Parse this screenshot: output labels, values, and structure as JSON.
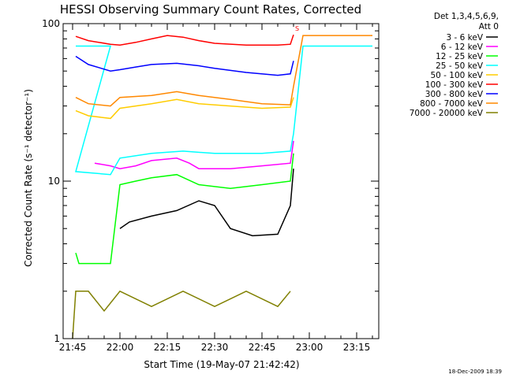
{
  "chart_data": {
    "type": "line",
    "title": "HESSI Observing Summary Count Rates, Corrected",
    "xlabel": "Start Time (19-May-07 21:42:42)",
    "ylabel": "Corrected Count Rate (s⁻¹ detector⁻¹)",
    "y_scale": "log",
    "ylim": [
      1,
      100
    ],
    "xlim": [
      "21:42",
      "23:22"
    ],
    "x_tick_labels": [
      "21:45",
      "22:00",
      "22:15",
      "22:30",
      "22:45",
      "23:00",
      "23:15"
    ],
    "y_tick_labels": [
      "1",
      "10",
      "100"
    ],
    "legend_title": "Det 1,3,4,5,6,9,",
    "legend_subtitle": "Att 0",
    "legend_position": "right",
    "footer_date": "18-Dec-2009 18:39",
    "marker_label": "S",
    "series": [
      {
        "name": "3 - 6 keV",
        "color": "#000000",
        "points": [
          [
            "22:00",
            5.0
          ],
          [
            "22:03",
            5.5
          ],
          [
            "22:10",
            6.0
          ],
          [
            "22:18",
            6.5
          ],
          [
            "22:25",
            7.5
          ],
          [
            "22:30",
            7.0
          ],
          [
            "22:35",
            5.0
          ],
          [
            "22:42",
            4.5
          ],
          [
            "22:50",
            4.6
          ],
          [
            "22:54",
            7.0
          ],
          [
            "22:55",
            12.0
          ]
        ]
      },
      {
        "name": "6 - 12 keV",
        "color": "#ff00ff",
        "points": [
          [
            "21:52",
            13.0
          ],
          [
            "21:57",
            12.5
          ],
          [
            "22:00",
            12.0
          ],
          [
            "22:05",
            12.5
          ],
          [
            "22:10",
            13.5
          ],
          [
            "22:18",
            14.0
          ],
          [
            "22:22",
            13.0
          ],
          [
            "22:25",
            12.0
          ],
          [
            "22:35",
            12.0
          ],
          [
            "22:45",
            12.5
          ],
          [
            "22:54",
            13.0
          ],
          [
            "22:55",
            18.0
          ]
        ]
      },
      {
        "name": "12 - 25 keV",
        "color": "#00ff00",
        "points": [
          [
            "21:46",
            3.5
          ],
          [
            "21:47",
            3.0
          ],
          [
            "21:50",
            3.0
          ],
          [
            "21:57",
            3.0
          ],
          [
            "22:00",
            9.5
          ],
          [
            "22:05",
            10.0
          ],
          [
            "22:10",
            10.5
          ],
          [
            "22:18",
            11.0
          ],
          [
            "22:25",
            9.5
          ],
          [
            "22:35",
            9.0
          ],
          [
            "22:45",
            9.5
          ],
          [
            "22:54",
            10.0
          ],
          [
            "22:55",
            15.0
          ]
        ]
      },
      {
        "name": "25 - 50 keV",
        "color": "#00ffff",
        "points": [
          [
            "21:46",
            72.0
          ],
          [
            "21:57",
            72.0
          ],
          [
            "21:46",
            11.5
          ],
          [
            "21:57",
            11.0
          ],
          [
            "22:00",
            14.0
          ],
          [
            "22:10",
            15.0
          ],
          [
            "22:20",
            15.5
          ],
          [
            "22:30",
            15.0
          ],
          [
            "22:45",
            15.0
          ],
          [
            "22:54",
            15.5
          ],
          [
            "22:55",
            20.0
          ],
          [
            "22:58",
            72.0
          ],
          [
            "23:20",
            72.0
          ]
        ]
      },
      {
        "name": "50 - 100 keV",
        "color": "#ffcc00",
        "points": [
          [
            "21:46",
            28.0
          ],
          [
            "21:50",
            26.0
          ],
          [
            "21:57",
            25.0
          ],
          [
            "22:00",
            29.0
          ],
          [
            "22:10",
            31.0
          ],
          [
            "22:18",
            33.0
          ],
          [
            "22:25",
            31.0
          ],
          [
            "22:35",
            30.0
          ],
          [
            "22:45",
            29.0
          ],
          [
            "22:54",
            29.5
          ],
          [
            "22:55",
            34.0
          ]
        ]
      },
      {
        "name": "100 - 300 keV",
        "color": "#ff0000",
        "points": [
          [
            "21:46",
            83.0
          ],
          [
            "21:50",
            78.0
          ],
          [
            "21:57",
            74.0
          ],
          [
            "22:00",
            73.0
          ],
          [
            "22:05",
            76.0
          ],
          [
            "22:10",
            80.0
          ],
          [
            "22:15",
            84.0
          ],
          [
            "22:20",
            82.0
          ],
          [
            "22:25",
            78.0
          ],
          [
            "22:30",
            75.0
          ],
          [
            "22:40",
            73.0
          ],
          [
            "22:50",
            73.0
          ],
          [
            "22:54",
            74.0
          ],
          [
            "22:55",
            85.0
          ]
        ]
      },
      {
        "name": "300 - 800 keV",
        "color": "#0000ff",
        "points": [
          [
            "21:46",
            62.0
          ],
          [
            "21:50",
            55.0
          ],
          [
            "21:57",
            50.0
          ],
          [
            "22:00",
            51.0
          ],
          [
            "22:05",
            53.0
          ],
          [
            "22:10",
            55.0
          ],
          [
            "22:18",
            56.0
          ],
          [
            "22:25",
            54.0
          ],
          [
            "22:30",
            52.0
          ],
          [
            "22:40",
            49.0
          ],
          [
            "22:50",
            47.0
          ],
          [
            "22:54",
            48.0
          ],
          [
            "22:55",
            58.0
          ]
        ]
      },
      {
        "name": "800 - 7000 keV",
        "color": "#ff8800",
        "points": [
          [
            "21:46",
            34.0
          ],
          [
            "21:50",
            31.0
          ],
          [
            "21:57",
            30.0
          ],
          [
            "22:00",
            34.0
          ],
          [
            "22:10",
            35.0
          ],
          [
            "22:18",
            37.0
          ],
          [
            "22:25",
            35.0
          ],
          [
            "22:35",
            33.0
          ],
          [
            "22:45",
            31.0
          ],
          [
            "22:54",
            30.5
          ],
          [
            "22:55",
            40.0
          ],
          [
            "22:58",
            84.0
          ],
          [
            "23:20",
            84.0
          ]
        ]
      },
      {
        "name": "7000 - 20000 keV",
        "color": "#808000",
        "points": [
          [
            "21:45",
            1.0
          ],
          [
            "21:46",
            2.0
          ],
          [
            "21:50",
            2.0
          ],
          [
            "21:55",
            1.5
          ],
          [
            "22:00",
            2.0
          ],
          [
            "22:10",
            1.6
          ],
          [
            "22:20",
            2.0
          ],
          [
            "22:30",
            1.6
          ],
          [
            "22:40",
            2.0
          ],
          [
            "22:50",
            1.6
          ],
          [
            "22:54",
            2.0
          ]
        ]
      }
    ]
  }
}
